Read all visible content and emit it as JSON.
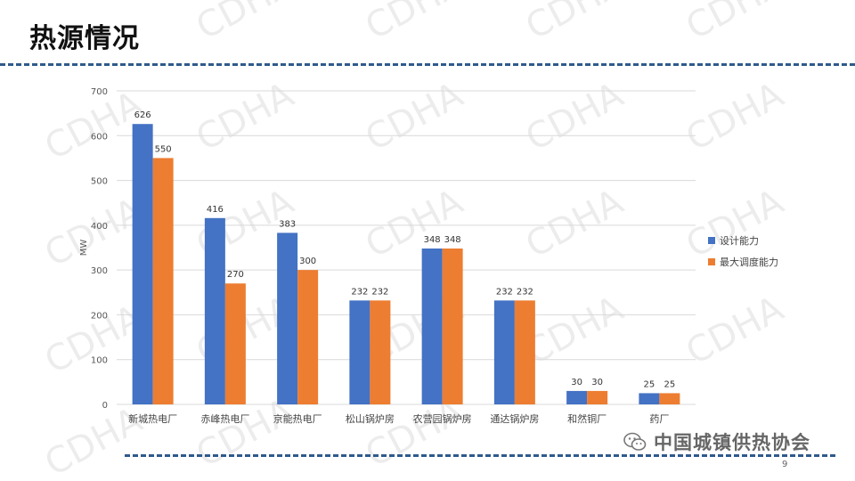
{
  "title": "热源情况",
  "watermark": "CDHA",
  "logo_text": "中国城镇供热协会",
  "page_number": "9",
  "colors": {
    "series1": "#4472c4",
    "series2": "#ed7d31",
    "grid": "#d9d9d9",
    "dash": "#2f5a8a"
  },
  "chart_data": {
    "type": "bar",
    "title": "",
    "xlabel": "",
    "ylabel": "MW",
    "ylim": [
      0,
      700
    ],
    "yticks": [
      0,
      100,
      200,
      300,
      400,
      500,
      600,
      700
    ],
    "grid": true,
    "legend_position": "right",
    "categories": [
      "新城热电厂",
      "赤峰热电厂",
      "京能热电厂",
      "松山锅炉房",
      "农营园锅炉房",
      "通达锅炉房",
      "和然铜厂",
      "药厂"
    ],
    "series": [
      {
        "name": "设计能力",
        "values": [
          626,
          416,
          383,
          232,
          348,
          232,
          30,
          25
        ],
        "color": "#4472c4"
      },
      {
        "name": "最大调度能力",
        "values": [
          550,
          270,
          300,
          232,
          348,
          232,
          30,
          25
        ],
        "color": "#ed7d31"
      }
    ]
  }
}
